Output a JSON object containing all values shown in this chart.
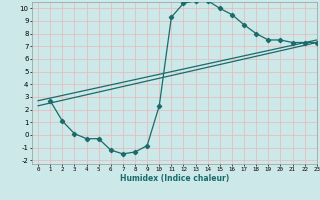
{
  "xlabel": "Humidex (Indice chaleur)",
  "bg_color": "#cce8e8",
  "grid_color": "#e8b8b8",
  "line_color": "#1a6b6b",
  "xlim": [
    -0.5,
    23
  ],
  "ylim": [
    -2.3,
    10.5
  ],
  "x_ticks": [
    0,
    1,
    2,
    3,
    4,
    5,
    6,
    7,
    8,
    9,
    10,
    11,
    12,
    13,
    14,
    15,
    16,
    17,
    18,
    19,
    20,
    21,
    22,
    23
  ],
  "y_ticks": [
    -2,
    -1,
    0,
    1,
    2,
    3,
    4,
    5,
    6,
    7,
    8,
    9,
    10
  ],
  "curve1_x": [
    1,
    2,
    3,
    4,
    5,
    6,
    7,
    8,
    9,
    10,
    11,
    12,
    13,
    14,
    15,
    16,
    17,
    18,
    19,
    20,
    21,
    22,
    23
  ],
  "curve1_y": [
    2.7,
    1.1,
    0.1,
    -0.3,
    -0.3,
    -1.2,
    -1.5,
    -1.35,
    -0.85,
    2.3,
    9.3,
    10.4,
    10.6,
    10.6,
    10.0,
    9.5,
    8.7,
    8.0,
    7.5,
    7.5,
    7.3,
    7.3,
    7.3
  ],
  "line2_x": [
    0,
    23
  ],
  "line2_y": [
    2.7,
    7.5
  ],
  "line3_x": [
    0,
    23
  ],
  "line3_y": [
    2.3,
    7.3
  ]
}
